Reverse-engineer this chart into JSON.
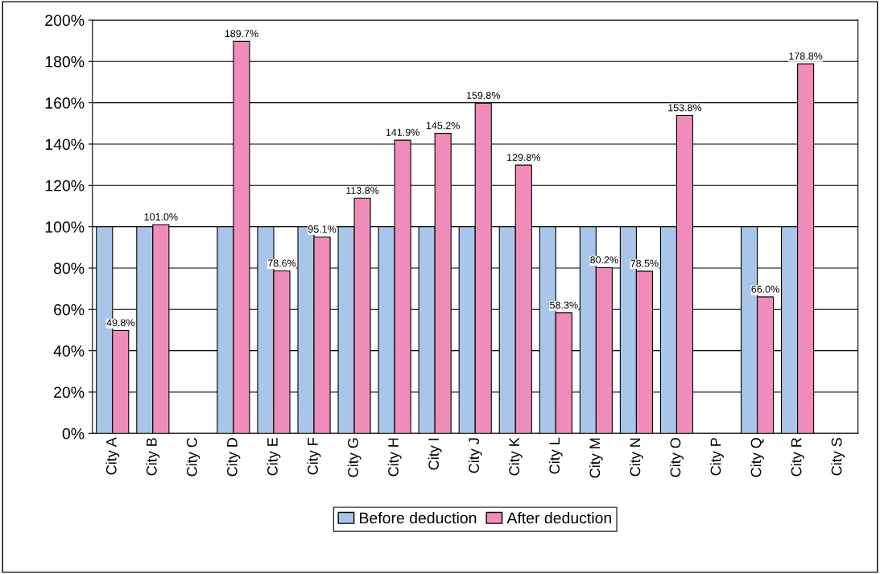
{
  "chart_data": {
    "type": "bar",
    "categories": [
      "City A",
      "City B",
      "City C",
      "City D",
      "City E",
      "City F",
      "City G",
      "City H",
      "City I",
      "City J",
      "City K",
      "City L",
      "City M",
      "City N",
      "City O",
      "City P",
      "City Q",
      "City R",
      "City S"
    ],
    "series": [
      {
        "name": "Before deduction",
        "color": "#a9c6ea",
        "values": [
          100,
          100,
          null,
          100,
          100,
          100,
          100,
          100,
          100,
          100,
          100,
          100,
          100,
          100,
          100,
          null,
          100,
          100,
          null
        ]
      },
      {
        "name": "After deduction",
        "color": "#f08cba",
        "values": [
          49.8,
          101.0,
          null,
          189.7,
          78.6,
          95.1,
          113.8,
          141.9,
          145.2,
          159.8,
          129.8,
          58.3,
          80.2,
          78.5,
          153.8,
          null,
          66.0,
          178.8,
          null
        ],
        "value_labels": [
          "49.8%",
          "101.0%",
          null,
          "189.7%",
          "78.6%",
          "95.1%",
          "113.8%",
          "141.9%",
          "145.2%",
          "159.8%",
          "129.8%",
          "58.3%",
          "80.2%",
          "78.5%",
          "153.8%",
          null,
          "66.0%",
          "178.8%",
          null
        ]
      }
    ],
    "ylim": [
      0,
      200
    ],
    "yticks": [
      {
        "value": 0,
        "label": "0%"
      },
      {
        "value": 20,
        "label": "20%"
      },
      {
        "value": 40,
        "label": "40%"
      },
      {
        "value": 60,
        "label": "60%"
      },
      {
        "value": 80,
        "label": "80%"
      },
      {
        "value": 100,
        "label": "100%"
      },
      {
        "value": 120,
        "label": "120%"
      },
      {
        "value": 140,
        "label": "140%"
      },
      {
        "value": 160,
        "label": "160%"
      },
      {
        "value": 180,
        "label": "180%"
      },
      {
        "value": 200,
        "label": "200%"
      }
    ],
    "grid": "y",
    "legend": "bottom"
  }
}
